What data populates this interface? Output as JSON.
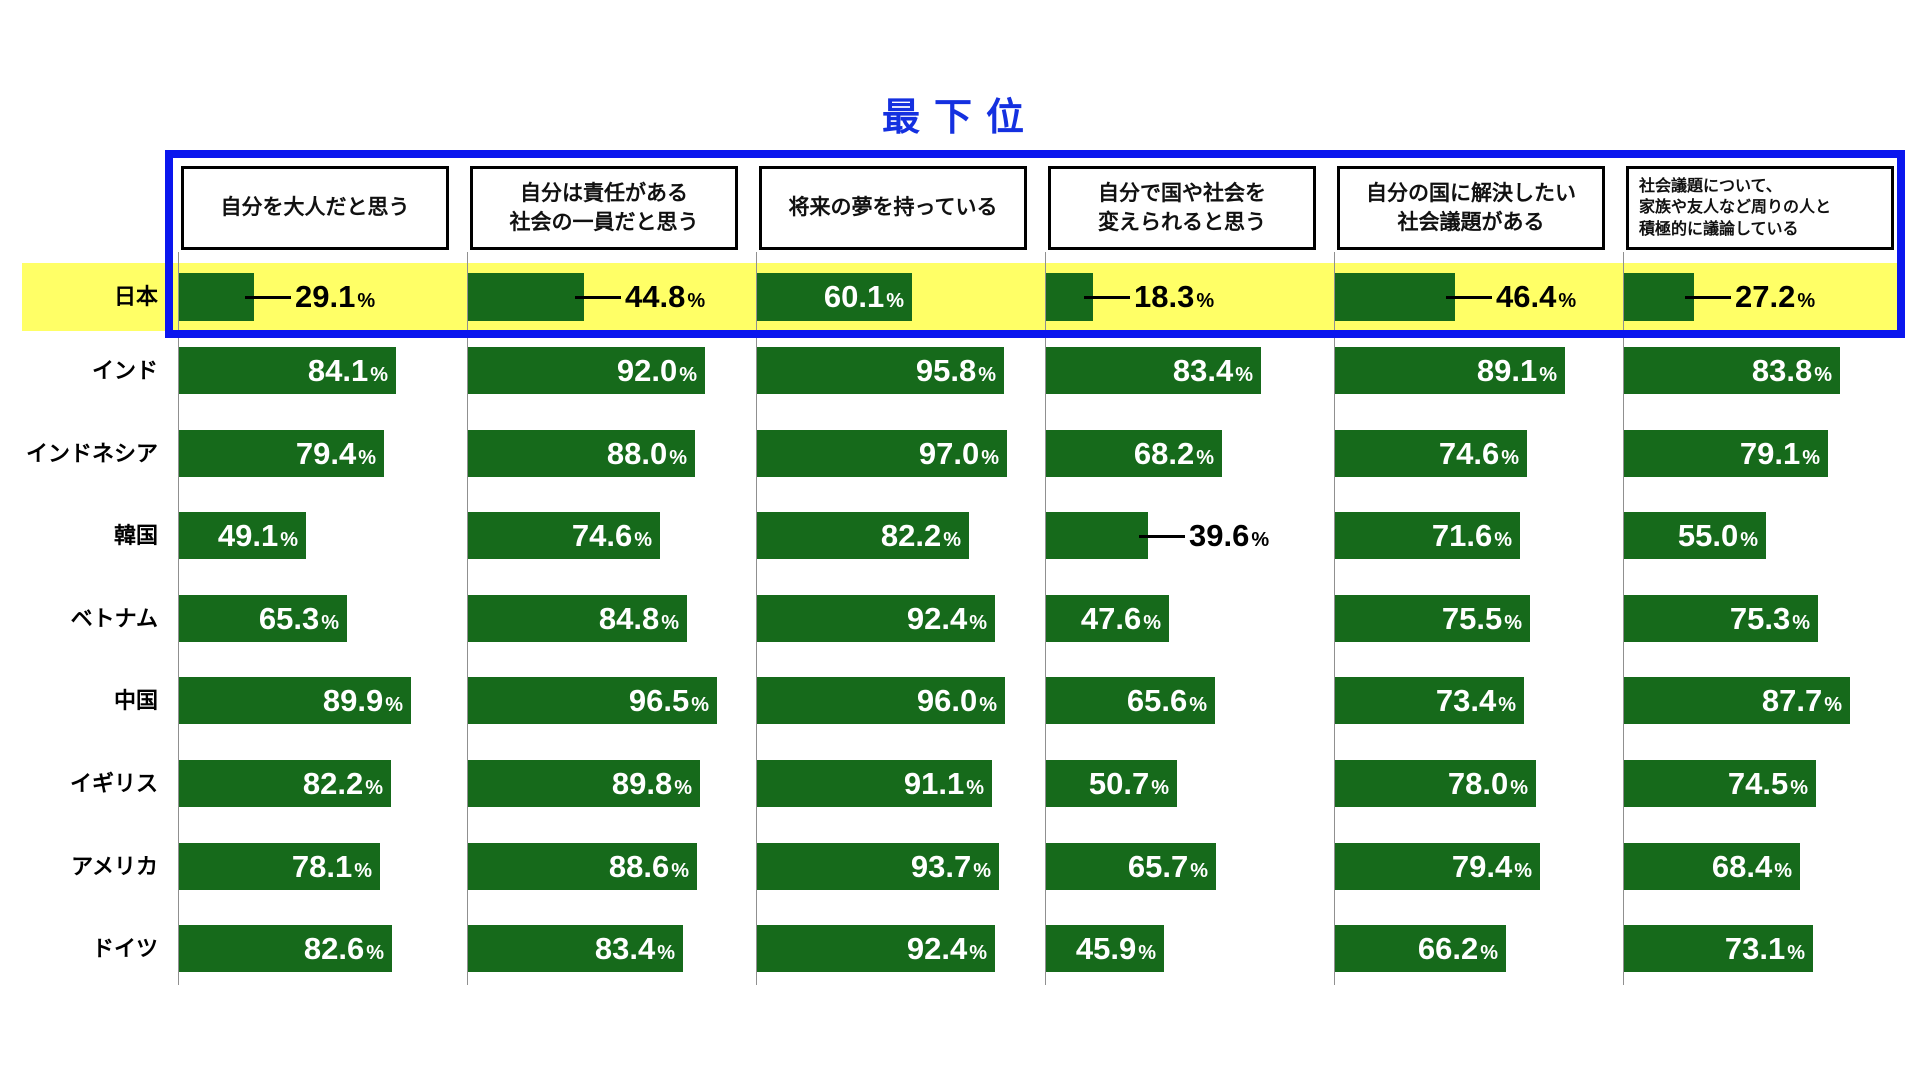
{
  "title": "最下位",
  "unit": "%",
  "colors": {
    "bar_green": "#166A1B",
    "highlight_yellow": "#FFFF66",
    "frame_blue": "#0A16EE",
    "title_blue": "#1430E0",
    "axis_gray": "#909090"
  },
  "chart_data": {
    "type": "bar",
    "orientation": "horizontal",
    "value_unit": "%",
    "xlim": [
      0,
      100
    ],
    "annotation_title": "最下位",
    "highlight_row": "日本",
    "questions": [
      [
        "自分を大人だと思う"
      ],
      [
        "自分は責任がある",
        "社会の一員だと思う"
      ],
      [
        "将来の夢を持っている"
      ],
      [
        "自分で国や社会を",
        "変えられると思う"
      ],
      [
        "自分の国に解決したい",
        "社会議題がある"
      ],
      [
        "社会議題について、",
        "家族や友人など周りの人と",
        "積極的に議論している"
      ]
    ],
    "rows": [
      {
        "country": "日本",
        "highlighted": true,
        "values": [
          "29.1",
          "44.8",
          "60.1",
          "18.3",
          "46.4",
          "27.2"
        ],
        "label_outside": [
          true,
          true,
          false,
          true,
          true,
          true
        ]
      },
      {
        "country": "インド",
        "highlighted": false,
        "values": [
          "84.1",
          "92.0",
          "95.8",
          "83.4",
          "89.1",
          "83.8"
        ],
        "label_outside": [
          false,
          false,
          false,
          false,
          false,
          false
        ]
      },
      {
        "country": "インドネシア",
        "highlighted": false,
        "values": [
          "79.4",
          "88.0",
          "97.0",
          "68.2",
          "74.6",
          "79.1"
        ],
        "label_outside": [
          false,
          false,
          false,
          false,
          false,
          false
        ]
      },
      {
        "country": "韓国",
        "highlighted": false,
        "values": [
          "49.1",
          "74.6",
          "82.2",
          "39.6",
          "71.6",
          "55.0"
        ],
        "label_outside": [
          false,
          false,
          false,
          true,
          false,
          false
        ]
      },
      {
        "country": "ベトナム",
        "highlighted": false,
        "values": [
          "65.3",
          "84.8",
          "92.4",
          "47.6",
          "75.5",
          "75.3"
        ],
        "label_outside": [
          false,
          false,
          false,
          false,
          false,
          false
        ]
      },
      {
        "country": "中国",
        "highlighted": false,
        "values": [
          "89.9",
          "96.5",
          "96.0",
          "65.6",
          "73.4",
          "87.7"
        ],
        "label_outside": [
          false,
          false,
          false,
          false,
          false,
          false
        ]
      },
      {
        "country": "イギリス",
        "highlighted": false,
        "values": [
          "82.2",
          "89.8",
          "91.1",
          "50.7",
          "78.0",
          "74.5"
        ],
        "label_outside": [
          false,
          false,
          false,
          false,
          false,
          false
        ]
      },
      {
        "country": "アメリカ",
        "highlighted": false,
        "values": [
          "78.1",
          "88.6",
          "93.7",
          "65.7",
          "79.4",
          "68.4"
        ],
        "label_outside": [
          false,
          false,
          false,
          false,
          false,
          false
        ]
      },
      {
        "country": "ドイツ",
        "highlighted": false,
        "values": [
          "82.6",
          "83.4",
          "92.4",
          "45.9",
          "66.2",
          "73.1"
        ],
        "label_outside": [
          false,
          false,
          false,
          false,
          false,
          false
        ]
      }
    ]
  }
}
